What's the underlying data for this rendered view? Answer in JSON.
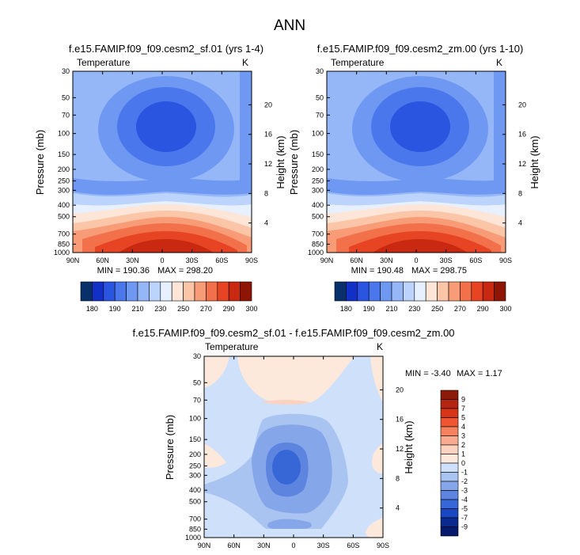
{
  "chart_data": {
    "type": "contour",
    "suptitle": "ANN",
    "panels": [
      {
        "id": "case",
        "title": "f.e15.FAMIP.f09_f09.cesm2_sf.01 (yrs 1-4)",
        "field": "Temperature",
        "units": "K",
        "xlabel": "",
        "ylabel_left": "Pressure (mb)",
        "ylabel_right": "Height (km)",
        "xticks": [
          "90N",
          "60N",
          "30N",
          "0",
          "30S",
          "60S",
          "90S"
        ],
        "xvals": [
          90,
          60,
          30,
          0,
          -30,
          -60,
          -90
        ],
        "pressure_ticks": [
          30,
          50,
          70,
          100,
          150,
          200,
          250,
          300,
          400,
          500,
          700,
          850,
          1000
        ],
        "height_ticks": [
          20,
          16,
          12,
          8,
          4
        ],
        "min_label": "MIN = 190.36",
        "max_label": "MAX = 298.20",
        "min": 190.36,
        "max": 298.2,
        "colorbar_labels": [
          "180",
          "190",
          "210",
          "230",
          "250",
          "270",
          "290",
          "300"
        ]
      },
      {
        "id": "control",
        "title": "f.e15.FAMIP.f09_f09.cesm2_zm.00 (yrs 1-10)",
        "field": "Temperature",
        "units": "K",
        "xlabel": "",
        "ylabel_left": "Pressure (mb)",
        "ylabel_right": "Height (km)",
        "xticks": [
          "90N",
          "60N",
          "30N",
          "0",
          "30S",
          "60S",
          "90S"
        ],
        "xvals": [
          90,
          60,
          30,
          0,
          -30,
          -60,
          -90
        ],
        "pressure_ticks": [
          30,
          50,
          70,
          100,
          150,
          200,
          250,
          300,
          400,
          500,
          700,
          850,
          1000
        ],
        "height_ticks": [
          20,
          16,
          12,
          8,
          4
        ],
        "min_label": "MIN = 190.48",
        "max_label": "MAX = 298.75",
        "min": 190.48,
        "max": 298.75,
        "colorbar_labels": [
          "180",
          "190",
          "210",
          "230",
          "250",
          "270",
          "290",
          "300"
        ]
      },
      {
        "id": "diff",
        "title": "f.e15.FAMIP.f09_f09.cesm2_sf.01 - f.e15.FAMIP.f09_f09.cesm2_zm.00",
        "field": "Temperature",
        "units": "K",
        "xlabel": "",
        "ylabel_left": "Pressure (mb)",
        "ylabel_right": "Height (km)",
        "xticks": [
          "90N",
          "60N",
          "30N",
          "0",
          "30S",
          "60S",
          "90S"
        ],
        "xvals": [
          90,
          60,
          30,
          0,
          -30,
          -60,
          -90
        ],
        "pressure_ticks": [
          30,
          50,
          70,
          100,
          150,
          200,
          250,
          300,
          400,
          500,
          700,
          850,
          1000
        ],
        "height_ticks": [
          20,
          16,
          12,
          8,
          4
        ],
        "min_label": "MIN =  -3.40",
        "max_label": "MAX =   1.17",
        "min": -3.4,
        "max": 1.17,
        "colorbar_labels": [
          "9",
          "7",
          "5",
          "4",
          "3",
          "2",
          "1",
          "0",
          "-1",
          "-2",
          "-3",
          "-4",
          "-5",
          "-7",
          "-9"
        ]
      }
    ]
  },
  "colors": {
    "abs_palette": [
      "#08306b",
      "#1230c6",
      "#2a55e0",
      "#4a78ec",
      "#6e98f2",
      "#95b7f7",
      "#bcd3fb",
      "#e6f0ff",
      "#fde6d8",
      "#fbc5a8",
      "#f89c77",
      "#f2704a",
      "#e64422",
      "#c82910",
      "#8e1406"
    ],
    "diff_palette": [
      "#8b1a0a",
      "#b32611",
      "#d83418",
      "#ee5530",
      "#f4825f",
      "#f8ab8e",
      "#fbd2bf",
      "#fde8dc",
      "#cfe0fa",
      "#aac4f2",
      "#86a6ea",
      "#5d85e0",
      "#3766d6",
      "#1b47c4",
      "#0a2a92",
      "#061a6b"
    ]
  }
}
